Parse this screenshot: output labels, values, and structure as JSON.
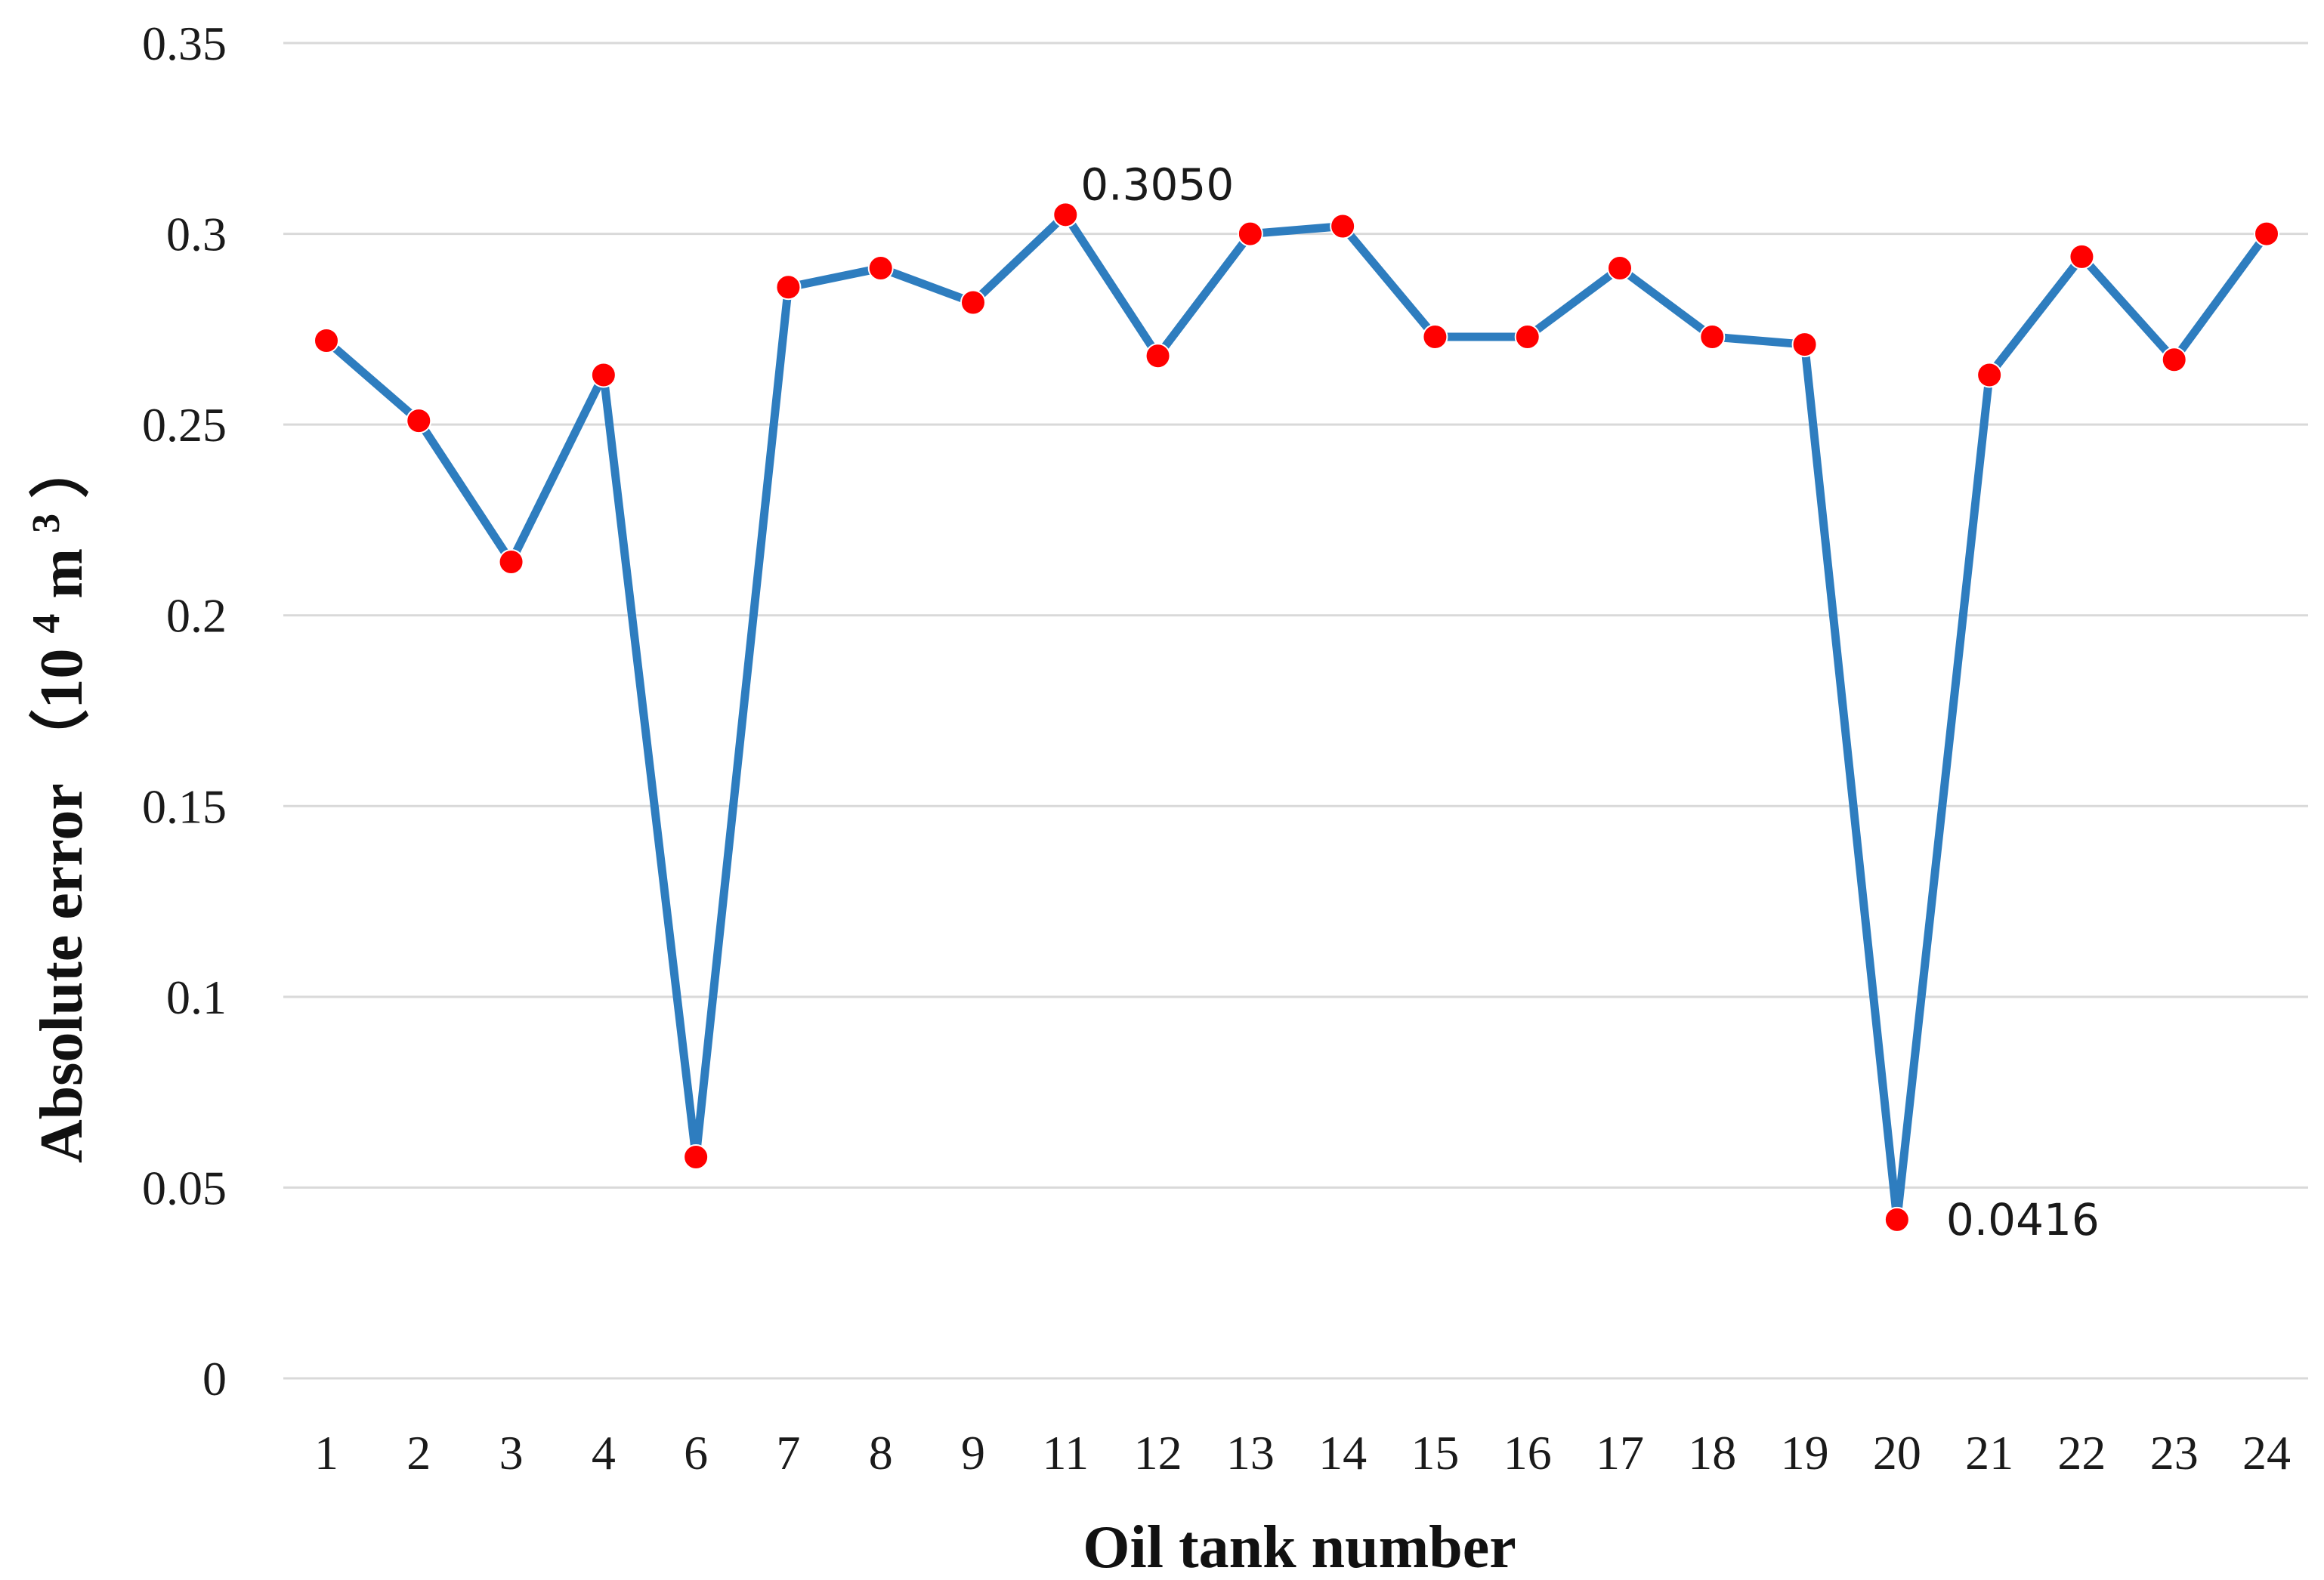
{
  "chart_data": {
    "type": "line",
    "title": "",
    "xlabel": "Oil tank number",
    "ylabel_main": "Absolute error",
    "ylabel_unit": "（10",
    "ylabel_exp1": "4",
    "ylabel_unit2": "m",
    "ylabel_exp2": "3",
    "ylabel_close": "）",
    "categories": [
      "1",
      "2",
      "3",
      "4",
      "6",
      "7",
      "8",
      "9",
      "11",
      "12",
      "13",
      "14",
      "15",
      "16",
      "17",
      "18",
      "19",
      "20",
      "21",
      "22",
      "23",
      "24"
    ],
    "series": [
      {
        "values": [
          0.272,
          0.251,
          0.214,
          0.263,
          0.058,
          0.286,
          0.291,
          0.282,
          0.305,
          0.268,
          0.3,
          0.302,
          0.273,
          0.273,
          0.291,
          0.273,
          0.271,
          0.0416,
          0.263,
          0.294,
          0.267,
          0.3
        ],
        "line_color": "#2e7dbf",
        "marker_color": "#ff0000"
      }
    ],
    "ylim": [
      0,
      0.35
    ],
    "yticks": [
      "0",
      "0.05",
      "0.1",
      "0.15",
      "0.2",
      "0.25",
      "0.3",
      "0.35"
    ],
    "grid": true,
    "annotations": [
      {
        "category_index": 8,
        "text": "0.3050"
      },
      {
        "category_index": 17,
        "text": "0.0416"
      }
    ]
  }
}
